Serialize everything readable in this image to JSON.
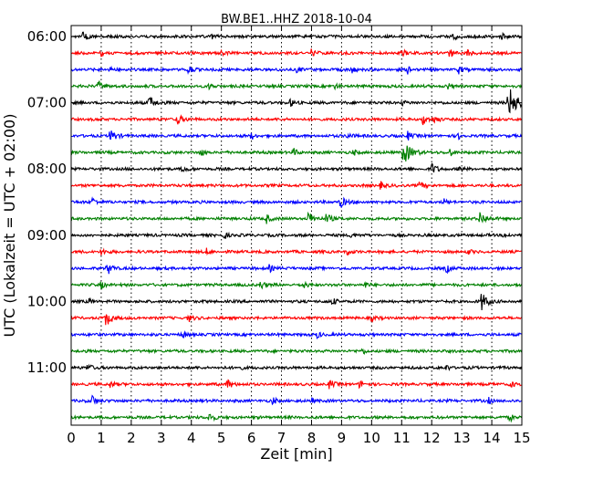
{
  "chart_data": {
    "type": "line",
    "title": "BW.BE1..HHZ 2018-10-04",
    "xlabel": "Zeit  [min]",
    "ylabel": "UTC (Lokalzeit = UTC + 02:00)",
    "xlim": [
      0,
      15
    ],
    "x_ticks": [
      "0",
      "1",
      "2",
      "3",
      "4",
      "5",
      "6",
      "7",
      "8",
      "9",
      "10",
      "11",
      "12",
      "13",
      "14",
      "15"
    ],
    "y_ticks": [
      {
        "label": "06:00",
        "trace": 0
      },
      {
        "label": "07:00",
        "trace": 4
      },
      {
        "label": "08:00",
        "trace": 8
      },
      {
        "label": "09:00",
        "trace": 12
      },
      {
        "label": "10:00",
        "trace": 16
      },
      {
        "label": "11:00",
        "trace": 20
      }
    ],
    "grid": "vertical-dotted",
    "trace_colors": [
      "#000000",
      "#ff0000",
      "#0000ff",
      "#008000"
    ],
    "trace_minutes": 15,
    "traces": [
      {
        "start": "06:00",
        "events": [
          {
            "t": 0.4,
            "a": 5
          },
          {
            "t": 4.7,
            "a": 4
          },
          {
            "t": 12.7,
            "a": 4
          },
          {
            "t": 13.4,
            "a": 3
          },
          {
            "t": 14.3,
            "a": 4
          }
        ]
      },
      {
        "start": "06:15",
        "events": [
          {
            "t": 1.0,
            "a": 3
          },
          {
            "t": 5.0,
            "a": 3
          },
          {
            "t": 8.0,
            "a": 4
          },
          {
            "t": 11.0,
            "a": 4
          },
          {
            "t": 12.6,
            "a": 5
          },
          {
            "t": 13.2,
            "a": 4
          }
        ]
      },
      {
        "start": "06:30",
        "events": [
          {
            "t": 1.3,
            "a": 3
          },
          {
            "t": 3.9,
            "a": 5
          },
          {
            "t": 7.5,
            "a": 3
          },
          {
            "t": 9.3,
            "a": 5
          },
          {
            "t": 11.2,
            "a": 4
          },
          {
            "t": 12.9,
            "a": 4
          }
        ]
      },
      {
        "start": "06:45",
        "events": [
          {
            "t": 0.9,
            "a": 6
          },
          {
            "t": 4.6,
            "a": 3
          },
          {
            "t": 8.8,
            "a": 3
          },
          {
            "t": 12.5,
            "a": 4
          }
        ]
      },
      {
        "start": "07:00",
        "events": [
          {
            "t": 2.6,
            "a": 8
          },
          {
            "t": 7.3,
            "a": 4
          },
          {
            "t": 11.0,
            "a": 3
          },
          {
            "t": 14.55,
            "a": 18
          }
        ]
      },
      {
        "start": "07:15",
        "events": [
          {
            "t": 3.5,
            "a": 7
          },
          {
            "t": 11.7,
            "a": 6
          },
          {
            "t": 12.1,
            "a": 4
          }
        ]
      },
      {
        "start": "07:30",
        "events": [
          {
            "t": 1.3,
            "a": 7
          },
          {
            "t": 6.0,
            "a": 4
          },
          {
            "t": 9.2,
            "a": 4
          },
          {
            "t": 11.2,
            "a": 5
          },
          {
            "t": 12.9,
            "a": 3
          }
        ]
      },
      {
        "start": "07:45",
        "events": [
          {
            "t": 4.3,
            "a": 4
          },
          {
            "t": 7.4,
            "a": 4
          },
          {
            "t": 9.4,
            "a": 3
          },
          {
            "t": 11.05,
            "a": 13
          },
          {
            "t": 12.6,
            "a": 4
          }
        ]
      },
      {
        "start": "08:00",
        "events": [
          {
            "t": 3.7,
            "a": 4
          },
          {
            "t": 12.0,
            "a": 6
          },
          {
            "t": 12.9,
            "a": 3
          }
        ]
      },
      {
        "start": "08:15",
        "events": [
          {
            "t": 10.3,
            "a": 4
          },
          {
            "t": 11.6,
            "a": 4
          }
        ]
      },
      {
        "start": "08:30",
        "events": [
          {
            "t": 0.7,
            "a": 5
          },
          {
            "t": 8.95,
            "a": 7
          },
          {
            "t": 12.4,
            "a": 3
          }
        ]
      },
      {
        "start": "08:45",
        "events": [
          {
            "t": 6.5,
            "a": 5
          },
          {
            "t": 7.9,
            "a": 7
          },
          {
            "t": 8.5,
            "a": 6
          },
          {
            "t": 13.6,
            "a": 8
          }
        ]
      },
      {
        "start": "09:00",
        "events": [
          {
            "t": 5.1,
            "a": 4
          },
          {
            "t": 9.3,
            "a": 3
          },
          {
            "t": 14.4,
            "a": 4
          }
        ]
      },
      {
        "start": "09:15",
        "events": [
          {
            "t": 1.0,
            "a": 4
          },
          {
            "t": 4.5,
            "a": 3
          },
          {
            "t": 9.2,
            "a": 3
          },
          {
            "t": 13.2,
            "a": 3
          }
        ]
      },
      {
        "start": "09:30",
        "events": [
          {
            "t": 1.2,
            "a": 7
          },
          {
            "t": 6.6,
            "a": 4
          },
          {
            "t": 12.5,
            "a": 5
          }
        ]
      },
      {
        "start": "09:45",
        "events": [
          {
            "t": 1.0,
            "a": 4
          },
          {
            "t": 6.3,
            "a": 5
          },
          {
            "t": 7.7,
            "a": 4
          },
          {
            "t": 9.8,
            "a": 3
          }
        ]
      },
      {
        "start": "10:00",
        "events": [
          {
            "t": 0.6,
            "a": 3
          },
          {
            "t": 8.7,
            "a": 4
          },
          {
            "t": 13.65,
            "a": 10
          }
        ]
      },
      {
        "start": "10:15",
        "events": [
          {
            "t": 1.15,
            "a": 9
          },
          {
            "t": 3.9,
            "a": 4
          },
          {
            "t": 10.0,
            "a": 3
          }
        ]
      },
      {
        "start": "10:30",
        "events": [
          {
            "t": 3.7,
            "a": 4
          },
          {
            "t": 8.2,
            "a": 4
          }
        ]
      },
      {
        "start": "10:45",
        "events": [
          {
            "t": 9.7,
            "a": 3
          }
        ]
      },
      {
        "start": "11:00",
        "events": [
          {
            "t": 0.55,
            "a": 5
          },
          {
            "t": 5.6,
            "a": 3
          },
          {
            "t": 12.5,
            "a": 3
          }
        ]
      },
      {
        "start": "11:15",
        "events": [
          {
            "t": 1.3,
            "a": 4
          },
          {
            "t": 5.2,
            "a": 6
          },
          {
            "t": 8.6,
            "a": 5
          },
          {
            "t": 9.6,
            "a": 4
          },
          {
            "t": 14.6,
            "a": 4
          }
        ]
      },
      {
        "start": "11:30",
        "events": [
          {
            "t": 0.7,
            "a": 6
          },
          {
            "t": 6.7,
            "a": 4
          },
          {
            "t": 8.0,
            "a": 3
          },
          {
            "t": 13.9,
            "a": 3
          }
        ]
      },
      {
        "start": "11:45",
        "events": [
          {
            "t": 4.6,
            "a": 6
          },
          {
            "t": 14.6,
            "a": 4
          }
        ]
      }
    ]
  }
}
